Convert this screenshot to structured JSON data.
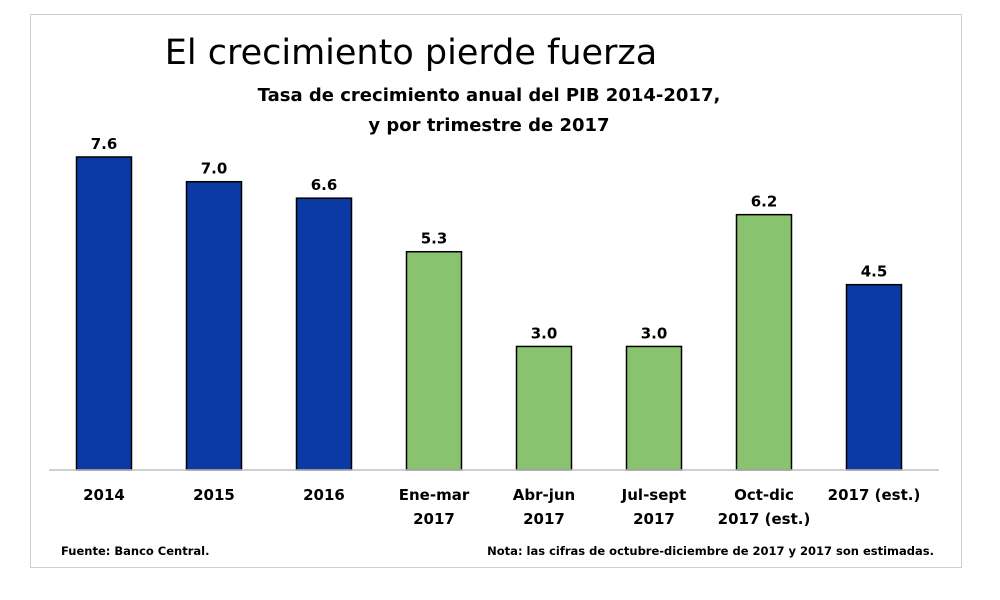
{
  "chart_data": {
    "type": "bar",
    "title": "El crecimiento pierde fuerza",
    "subtitle": [
      "Tasa de crecimiento anual del PIB 2014-2017,",
      "y por trimestre de 2017"
    ],
    "categories": [
      [
        "2014"
      ],
      [
        "2015"
      ],
      [
        "2016"
      ],
      [
        "Ene-mar",
        "2017"
      ],
      [
        "Abr-jun",
        "2017"
      ],
      [
        "Jul-sept",
        "2017"
      ],
      [
        "Oct-dic",
        "2017 (est.)"
      ],
      [
        "2017 (est.)"
      ]
    ],
    "values": [
      7.6,
      7.0,
      6.6,
      5.3,
      3.0,
      3.0,
      6.2,
      4.5
    ],
    "value_labels": [
      "7.6",
      "7.0",
      "6.6",
      "5.3",
      "3.0",
      "3.0",
      "6.2",
      "4.5"
    ],
    "bar_colors": [
      "#0b3aa5",
      "#0b3aa5",
      "#0b3aa5",
      "#8ac36f",
      "#8ac36f",
      "#8ac36f",
      "#8ac36f",
      "#0b3aa5"
    ],
    "ylim": [
      0,
      7.6
    ],
    "grid": false,
    "legend": "none"
  },
  "footer": {
    "source": "Fuente: Banco Central.",
    "note": "Nota: las cifras de octubre-diciembre  de 2017 y 2017 son estimadas."
  },
  "colors": {
    "annual_bar": "#0b3aa5",
    "quarter_bar": "#8ac36f",
    "bar_outline": "#000000",
    "axis": "#bfbfbf"
  }
}
